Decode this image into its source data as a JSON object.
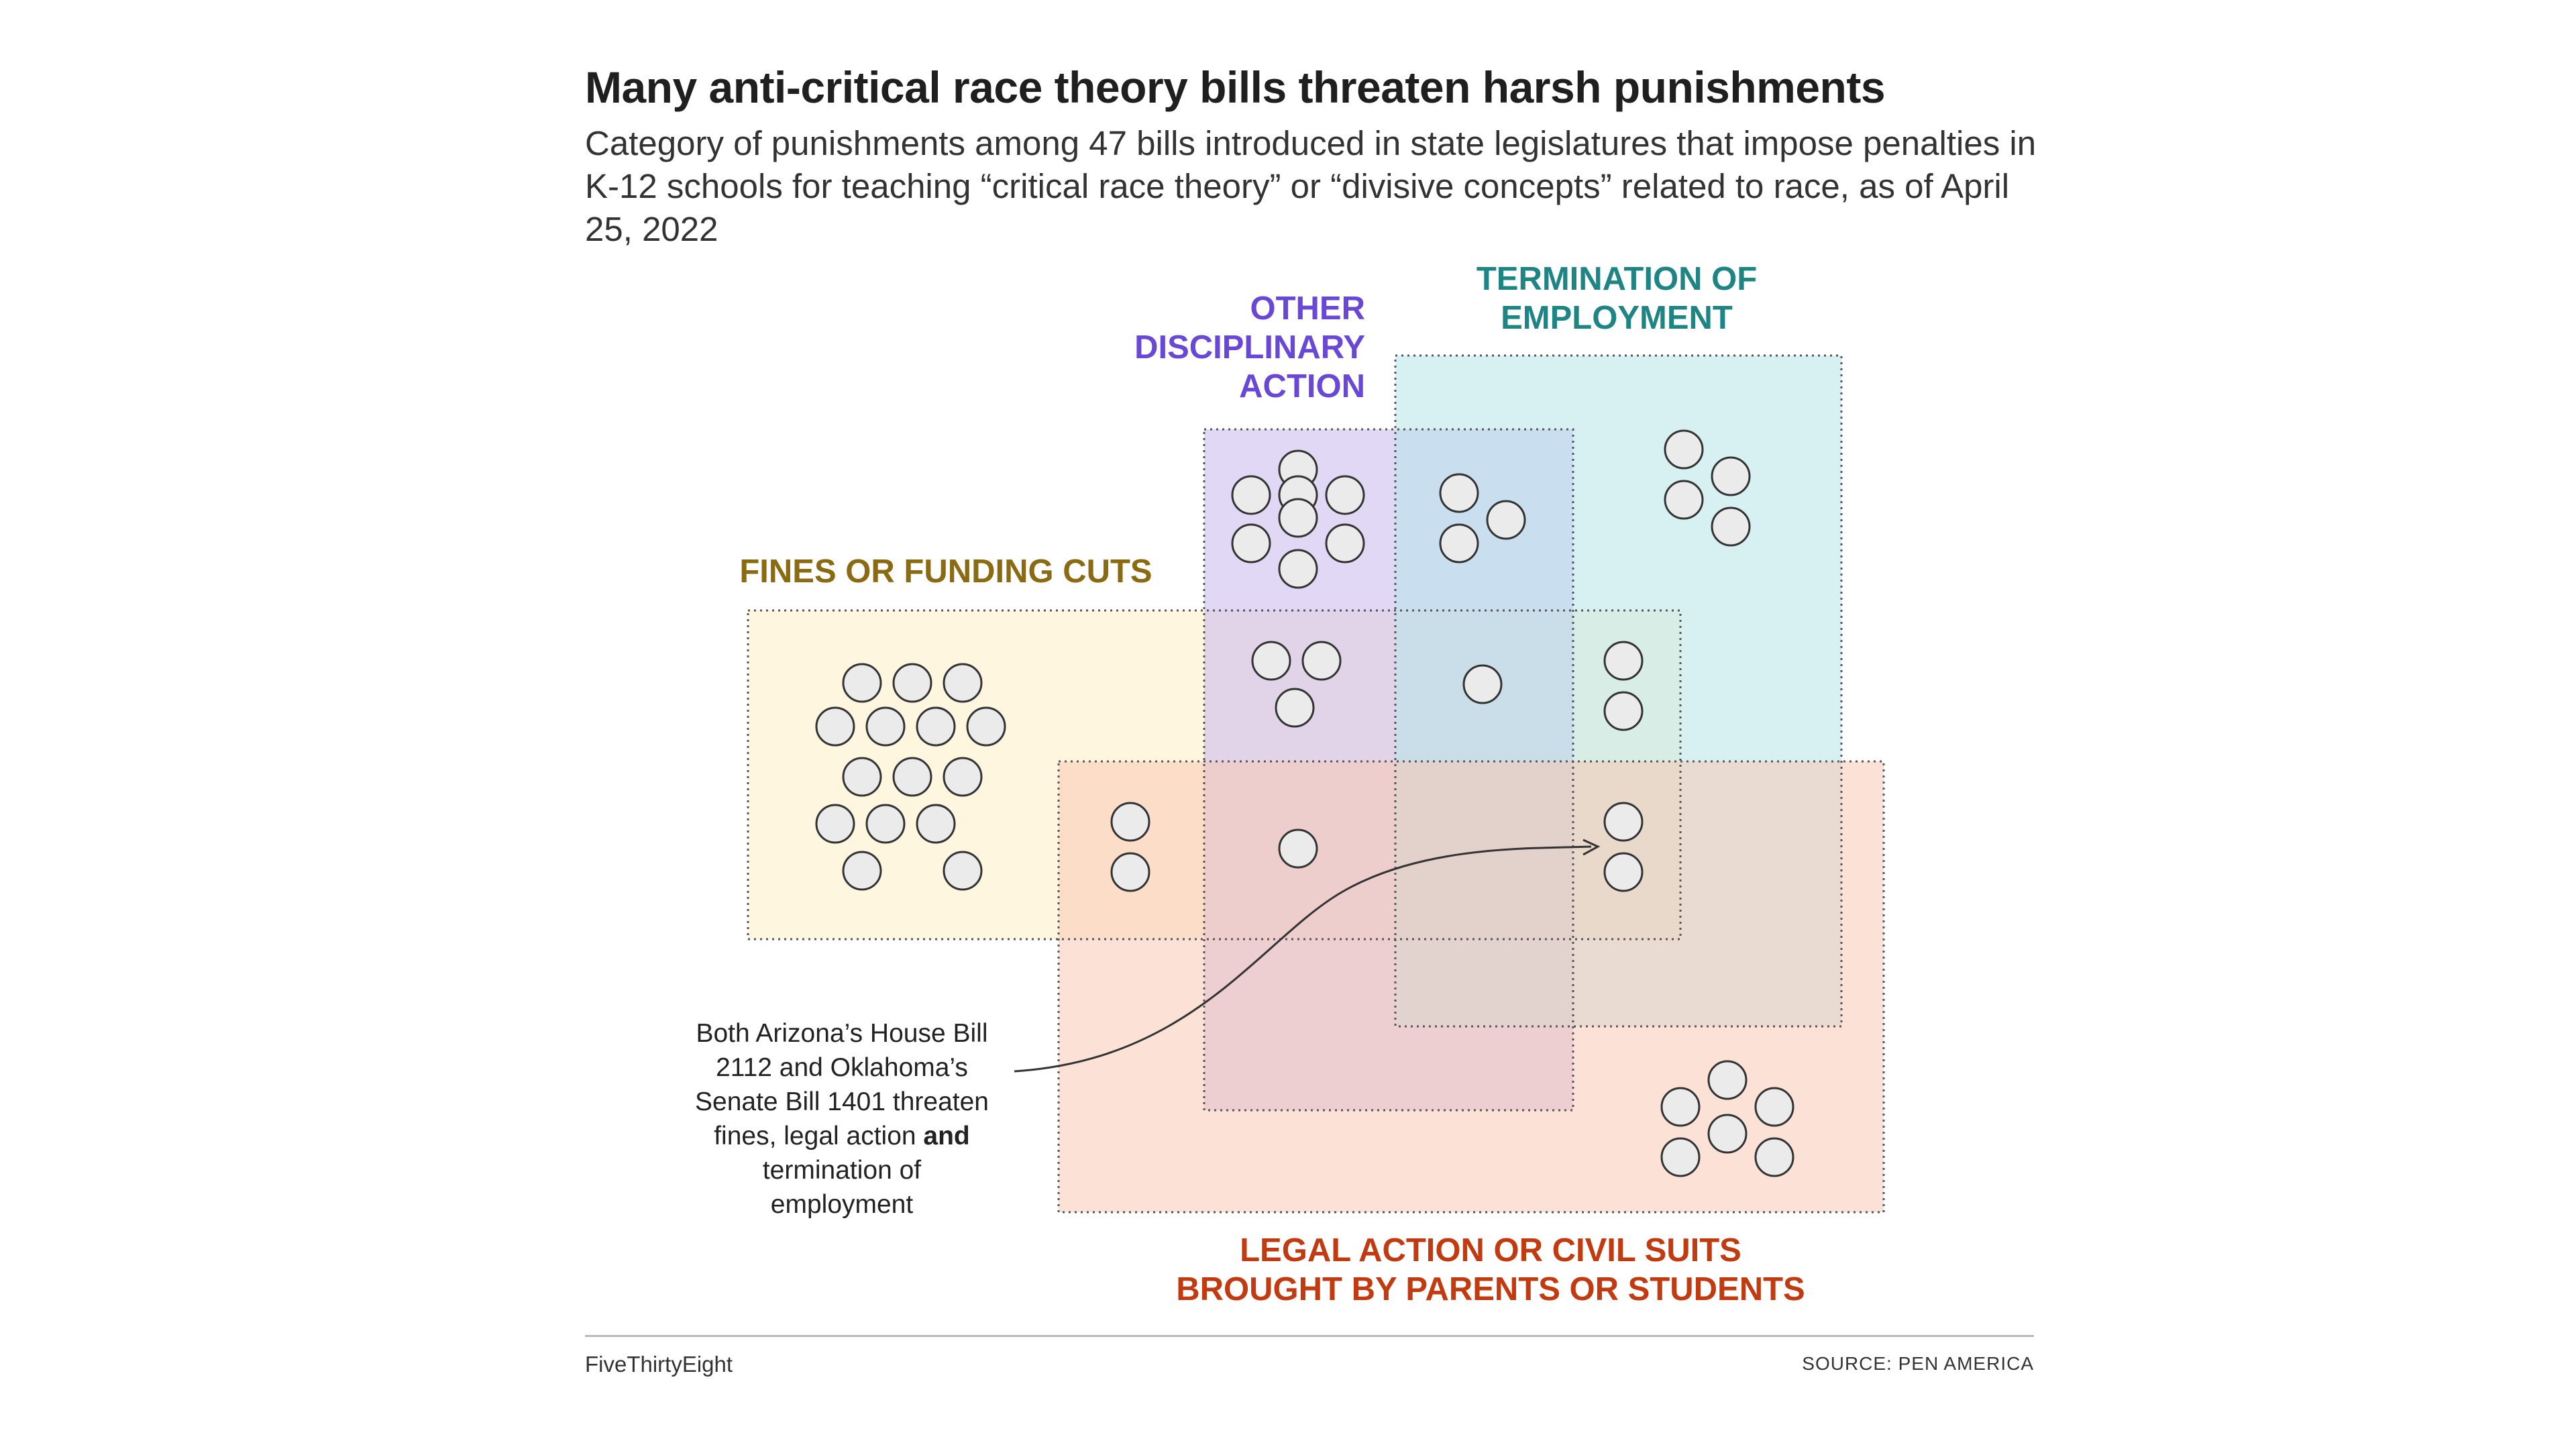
{
  "header": {
    "title": "Many anti-critical race theory bills threaten harsh punishments",
    "subtitle": "Category of punishments among 47 bills introduced in state legislatures that impose penalties in K-12 schools for teaching “critical race theory” or “divisive concepts” related to race, as of April 25, 2022"
  },
  "sets": {
    "fines": {
      "label_lines": [
        "FINES OR FUNDING CUTS"
      ],
      "fill": "#fdefc4",
      "label_color": "#8a6a12"
    },
    "other": {
      "label_lines": [
        "OTHER",
        "DISCIPLINARY",
        "ACTION"
      ],
      "fill": "#c8b8ef",
      "label_color": "#6a48d6"
    },
    "termination": {
      "label_lines": [
        "TERMINATION OF",
        "EMPLOYMENT"
      ],
      "fill": "#b6e6ea",
      "label_color": "#1f8484"
    },
    "legal": {
      "label_lines": [
        "LEGAL ACTION OR CIVIL SUITS",
        "BROUGHT BY PARENTS OR STUDENTS"
      ],
      "fill": "#f8c8b4",
      "label_color": "#c23a10"
    }
  },
  "regions": [
    {
      "sets": [
        "fines"
      ],
      "count": 15
    },
    {
      "sets": [
        "other"
      ],
      "count": 8
    },
    {
      "sets": [
        "termination"
      ],
      "count": 4
    },
    {
      "sets": [
        "legal"
      ],
      "count": 6
    },
    {
      "sets": [
        "other",
        "termination"
      ],
      "count": 3
    },
    {
      "sets": [
        "fines",
        "other"
      ],
      "count": 3
    },
    {
      "sets": [
        "fines",
        "other",
        "termination"
      ],
      "count": 1
    },
    {
      "sets": [
        "fines",
        "termination"
      ],
      "count": 2
    },
    {
      "sets": [
        "fines",
        "legal"
      ],
      "count": 2
    },
    {
      "sets": [
        "fines",
        "other",
        "legal"
      ],
      "count": 1
    },
    {
      "sets": [
        "fines",
        "termination",
        "legal"
      ],
      "count": 2
    }
  ],
  "annotation": {
    "lines": [
      "Both Arizona’s House Bill",
      "2112 and Oklahoma’s",
      "Senate Bill 1401 threaten",
      "fines, legal action |and|",
      "termination of",
      "employment"
    ]
  },
  "footer": {
    "credit": "FiveThirtyEight",
    "source": "SOURCE: PEN AMERICA"
  },
  "colors": {
    "dot_fill": "#ebebeb",
    "dot_stroke": "#333333",
    "border": "#555555"
  }
}
